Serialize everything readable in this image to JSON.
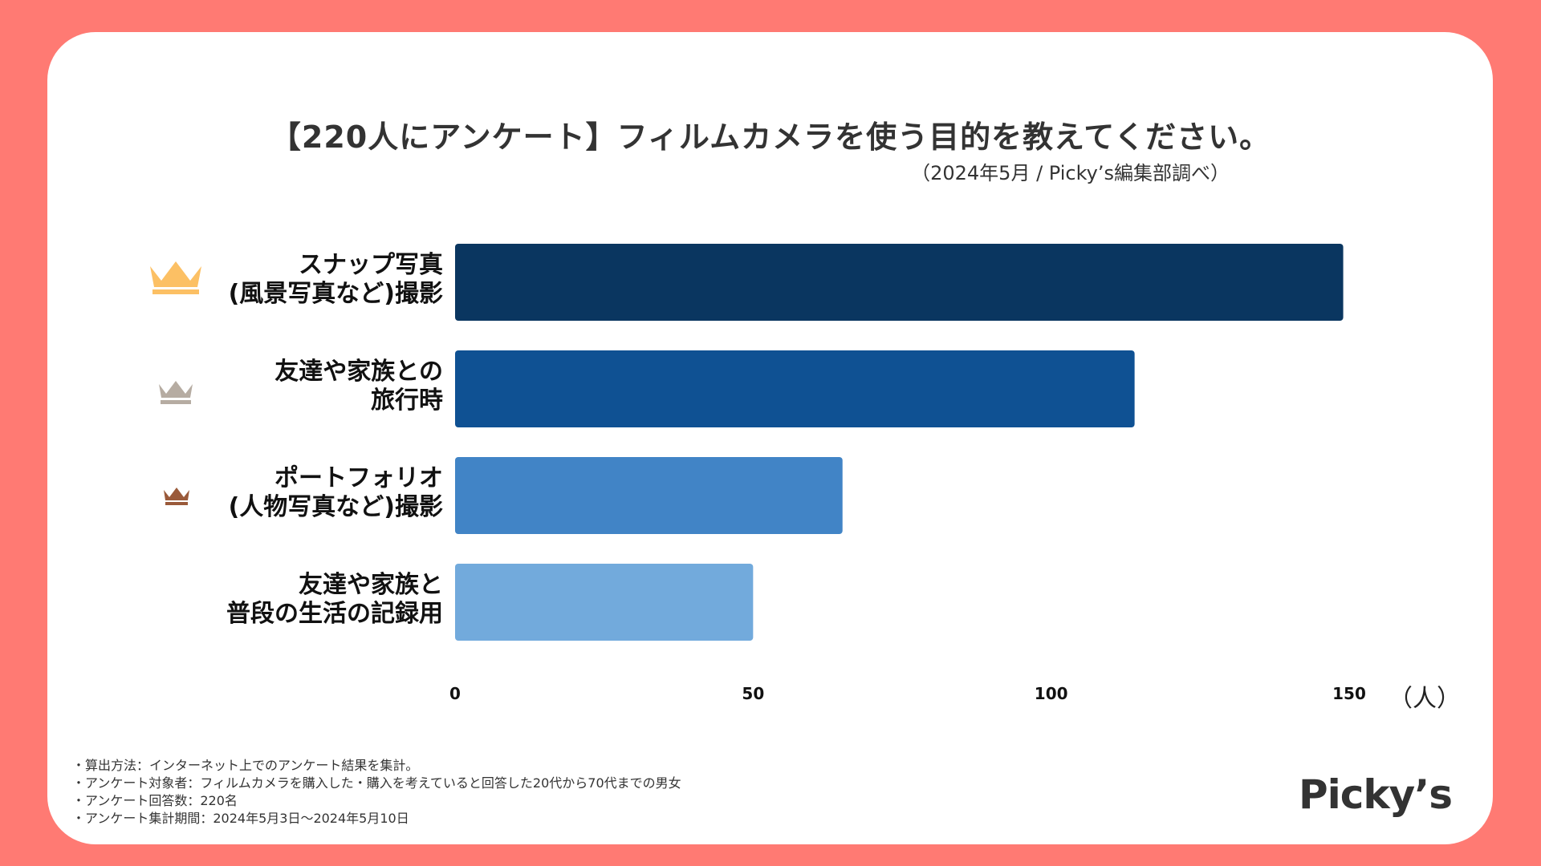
{
  "title": "【220人にアンケート】フィルムカメラを使う目的を教えてください。",
  "subtitle": "（2024年5月 / Picky’s編集部調べ）",
  "unit_label": "（人）",
  "logo": "Picky’s",
  "footnotes": [
    "・算出方法：インターネット上でのアンケート結果を集計。",
    "・アンケート対象者：フィルムカメラを購入した・購入を考えていると回答した20代から70代までの男女",
    "・アンケート回答数：220名",
    "・アンケート集計期間：2024年5月3日〜2024年5月10日"
  ],
  "crowns": [
    {
      "name": "gold-crown-icon",
      "color": "#fcc064"
    },
    {
      "name": "silver-crown-icon",
      "color": "#b6aca2"
    },
    {
      "name": "bronze-crown-icon",
      "color": "#9a5a3a"
    }
  ],
  "chart_data": {
    "type": "bar",
    "orientation": "horizontal",
    "title": "【220人にアンケート】フィルムカメラを使う目的を教えてください。",
    "xlabel": "（人）",
    "ylabel": "",
    "xlim": [
      0,
      150
    ],
    "ticks": [
      "0",
      "50",
      "100",
      "150"
    ],
    "categories": [
      {
        "line1": "スナップ写真",
        "line2": "(風景写真など)撮影"
      },
      {
        "line1": "友達や家族との",
        "line2": "旅行時"
      },
      {
        "line1": "ポートフォリオ",
        "line2": "(人物写真など)撮影"
      },
      {
        "line1": "友達や家族と",
        "line2": "普段の生活の記録用"
      }
    ],
    "values": [
      149,
      114,
      65,
      50
    ],
    "colors": [
      "#0a3660",
      "#0f5193",
      "#4184c6",
      "#72aadc"
    ]
  }
}
